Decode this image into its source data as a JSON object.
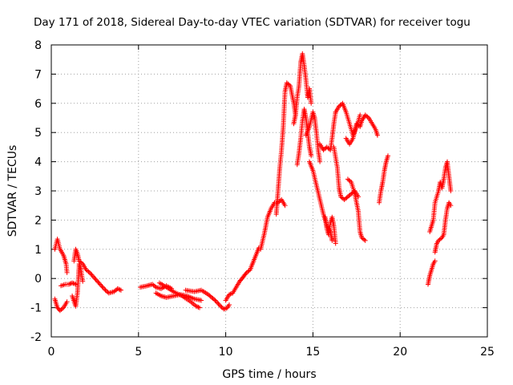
{
  "chart_data": {
    "type": "scatter",
    "title": "Day 171 of 2018, Sidereal Day-to-day VTEC variation (SDTVAR) for receiver togu",
    "xlabel": "GPS time / hours",
    "ylabel": "SDTVAR / TECUs",
    "xlim": [
      0,
      25
    ],
    "ylim": [
      -2,
      8
    ],
    "xticks": [
      0,
      5,
      10,
      15,
      20,
      25
    ],
    "yticks": [
      -2,
      -1,
      0,
      1,
      2,
      3,
      4,
      5,
      6,
      7,
      8
    ],
    "grid": true,
    "marker": "+",
    "series": [
      {
        "name": "SDTVAR",
        "color": "#ff0000",
        "segments": [
          [
            [
              0.2,
              1.0
            ],
            [
              0.35,
              1.35
            ],
            [
              0.5,
              1.0
            ],
            [
              0.7,
              0.8
            ],
            [
              0.85,
              0.5
            ],
            [
              0.9,
              0.2
            ]
          ],
          [
            [
              0.2,
              -0.7
            ],
            [
              0.35,
              -1.0
            ],
            [
              0.5,
              -1.1
            ],
            [
              0.7,
              -1.0
            ],
            [
              0.9,
              -0.8
            ]
          ],
          [
            [
              0.55,
              -0.25
            ],
            [
              0.8,
              -0.2
            ],
            [
              1.0,
              -0.2
            ],
            [
              1.2,
              -0.15
            ],
            [
              1.4,
              -0.2
            ]
          ],
          [
            [
              1.2,
              -0.6
            ],
            [
              1.4,
              -0.95
            ],
            [
              1.5,
              -0.5
            ],
            [
              1.55,
              0.0
            ],
            [
              1.6,
              0.5
            ],
            [
              1.7,
              0.3
            ],
            [
              1.8,
              -0.1
            ]
          ],
          [
            [
              1.3,
              0.6
            ],
            [
              1.4,
              1.0
            ],
            [
              1.5,
              0.85
            ],
            [
              1.6,
              0.6
            ],
            [
              1.8,
              0.5
            ],
            [
              2.0,
              0.3
            ],
            [
              2.2,
              0.2
            ],
            [
              2.5,
              0.0
            ],
            [
              2.8,
              -0.2
            ],
            [
              3.1,
              -0.4
            ],
            [
              3.3,
              -0.5
            ],
            [
              3.6,
              -0.45
            ],
            [
              3.8,
              -0.35
            ],
            [
              4.0,
              -0.4
            ]
          ],
          [
            [
              5.1,
              -0.3
            ],
            [
              5.5,
              -0.25
            ],
            [
              5.8,
              -0.2
            ],
            [
              6.0,
              -0.3
            ],
            [
              6.3,
              -0.35
            ],
            [
              6.6,
              -0.25
            ],
            [
              6.9,
              -0.35
            ]
          ],
          [
            [
              6.0,
              -0.5
            ],
            [
              6.3,
              -0.6
            ],
            [
              6.6,
              -0.65
            ],
            [
              7.0,
              -0.6
            ],
            [
              7.4,
              -0.55
            ],
            [
              7.8,
              -0.6
            ],
            [
              8.2,
              -0.7
            ],
            [
              8.6,
              -0.75
            ]
          ],
          [
            [
              6.2,
              -0.15
            ],
            [
              6.6,
              -0.3
            ],
            [
              7.0,
              -0.45
            ],
            [
              7.5,
              -0.6
            ],
            [
              8.0,
              -0.8
            ],
            [
              8.3,
              -0.95
            ],
            [
              8.5,
              -1.0
            ]
          ],
          [
            [
              7.7,
              -0.4
            ],
            [
              8.2,
              -0.45
            ],
            [
              8.6,
              -0.4
            ],
            [
              9.0,
              -0.55
            ],
            [
              9.4,
              -0.75
            ],
            [
              9.7,
              -0.95
            ],
            [
              9.9,
              -1.05
            ],
            [
              10.1,
              -1.0
            ],
            [
              10.2,
              -0.9
            ]
          ],
          [
            [
              10.0,
              -0.75
            ],
            [
              10.2,
              -0.55
            ],
            [
              10.4,
              -0.5
            ],
            [
              10.6,
              -0.3
            ],
            [
              10.8,
              -0.1
            ],
            [
              11.0,
              0.05
            ],
            [
              11.2,
              0.2
            ],
            [
              11.4,
              0.3
            ],
            [
              11.6,
              0.6
            ],
            [
              11.8,
              0.9
            ],
            [
              11.9,
              1.05
            ]
          ],
          [
            [
              12.0,
              1.0
            ],
            [
              12.2,
              1.5
            ],
            [
              12.4,
              2.1
            ],
            [
              12.6,
              2.4
            ],
            [
              12.8,
              2.6
            ],
            [
              13.0,
              2.6
            ],
            [
              13.2,
              2.7
            ],
            [
              13.4,
              2.5
            ]
          ],
          [
            [
              12.9,
              2.2
            ],
            [
              13.0,
              3.0
            ],
            [
              13.1,
              3.8
            ],
            [
              13.2,
              4.4
            ],
            [
              13.3,
              5.2
            ],
            [
              13.4,
              6.4
            ],
            [
              13.5,
              6.7
            ],
            [
              13.7,
              6.6
            ],
            [
              13.9,
              6.0
            ],
            [
              14.0,
              5.6
            ]
          ],
          [
            [
              13.9,
              5.3
            ],
            [
              14.0,
              5.6
            ],
            [
              14.1,
              6.2
            ],
            [
              14.2,
              6.6
            ],
            [
              14.3,
              7.4
            ],
            [
              14.4,
              7.7
            ],
            [
              14.5,
              7.3
            ],
            [
              14.6,
              6.8
            ],
            [
              14.7,
              6.2
            ],
            [
              14.8,
              6.5
            ],
            [
              14.9,
              6.0
            ]
          ],
          [
            [
              14.1,
              3.9
            ],
            [
              14.2,
              4.3
            ],
            [
              14.3,
              4.8
            ],
            [
              14.4,
              5.4
            ],
            [
              14.5,
              5.8
            ],
            [
              14.6,
              5.5
            ],
            [
              14.7,
              5.0
            ],
            [
              14.8,
              4.5
            ],
            [
              14.9,
              4.2
            ]
          ],
          [
            [
              14.6,
              4.9
            ],
            [
              14.8,
              5.2
            ],
            [
              15.0,
              5.7
            ],
            [
              15.1,
              5.5
            ],
            [
              15.2,
              5.0
            ],
            [
              15.3,
              4.4
            ],
            [
              15.4,
              4.0
            ]
          ],
          [
            [
              14.8,
              4.0
            ],
            [
              15.0,
              3.7
            ],
            [
              15.2,
              3.2
            ],
            [
              15.4,
              2.7
            ],
            [
              15.6,
              2.2
            ],
            [
              15.8,
              1.8
            ],
            [
              16.0,
              1.6
            ],
            [
              16.1,
              1.3
            ]
          ],
          [
            [
              15.4,
              4.6
            ],
            [
              15.6,
              4.4
            ],
            [
              15.8,
              4.5
            ],
            [
              16.0,
              4.4
            ],
            [
              16.1,
              4.8
            ],
            [
              16.2,
              5.3
            ],
            [
              16.3,
              5.7
            ]
          ],
          [
            [
              15.7,
              2.1
            ],
            [
              15.8,
              1.7
            ],
            [
              15.9,
              1.5
            ],
            [
              16.0,
              1.9
            ],
            [
              16.1,
              2.1
            ],
            [
              16.2,
              1.8
            ],
            [
              16.3,
              1.2
            ]
          ],
          [
            [
              16.2,
              4.5
            ],
            [
              16.4,
              3.8
            ],
            [
              16.5,
              3.1
            ],
            [
              16.6,
              2.8
            ],
            [
              16.8,
              2.7
            ],
            [
              17.0,
              2.8
            ],
            [
              17.2,
              2.9
            ],
            [
              17.4,
              3.0
            ],
            [
              17.6,
              2.8
            ]
          ],
          [
            [
              16.3,
              5.7
            ],
            [
              16.5,
              5.9
            ],
            [
              16.7,
              6.0
            ],
            [
              16.9,
              5.7
            ],
            [
              17.1,
              5.3
            ],
            [
              17.3,
              4.9
            ],
            [
              17.5,
              5.2
            ],
            [
              17.7,
              5.6
            ]
          ],
          [
            [
              16.9,
              4.8
            ],
            [
              17.1,
              4.6
            ],
            [
              17.3,
              4.8
            ],
            [
              17.5,
              5.3
            ],
            [
              17.7,
              5.2
            ],
            [
              17.8,
              5.4
            ],
            [
              18.0,
              5.6
            ],
            [
              18.2,
              5.5
            ],
            [
              18.4,
              5.3
            ],
            [
              18.6,
              5.1
            ],
            [
              18.7,
              4.9
            ]
          ],
          [
            [
              17.0,
              3.4
            ],
            [
              17.2,
              3.3
            ],
            [
              17.4,
              2.9
            ],
            [
              17.6,
              2.3
            ],
            [
              17.7,
              1.6
            ],
            [
              17.8,
              1.4
            ],
            [
              18.0,
              1.3
            ]
          ],
          [
            [
              18.8,
              2.6
            ],
            [
              18.9,
              3.0
            ],
            [
              19.0,
              3.3
            ],
            [
              19.1,
              3.7
            ],
            [
              19.2,
              4.0
            ],
            [
              19.3,
              4.2
            ]
          ],
          [
            [
              21.6,
              -0.2
            ],
            [
              21.7,
              0.1
            ],
            [
              21.8,
              0.3
            ],
            [
              21.9,
              0.5
            ],
            [
              22.0,
              0.6
            ]
          ],
          [
            [
              21.7,
              1.6
            ],
            [
              21.8,
              1.8
            ],
            [
              21.9,
              2.0
            ],
            [
              22.0,
              2.6
            ],
            [
              22.2,
              3.0
            ],
            [
              22.3,
              3.3
            ],
            [
              22.4,
              3.1
            ],
            [
              22.5,
              3.4
            ],
            [
              22.6,
              3.8
            ],
            [
              22.7,
              4.0
            ],
            [
              22.8,
              3.5
            ],
            [
              22.9,
              3.0
            ]
          ],
          [
            [
              22.0,
              0.9
            ],
            [
              22.1,
              1.2
            ],
            [
              22.2,
              1.3
            ],
            [
              22.4,
              1.4
            ],
            [
              22.5,
              1.5
            ],
            [
              22.6,
              2.0
            ],
            [
              22.7,
              2.4
            ],
            [
              22.8,
              2.6
            ],
            [
              22.9,
              2.5
            ]
          ]
        ]
      }
    ]
  }
}
